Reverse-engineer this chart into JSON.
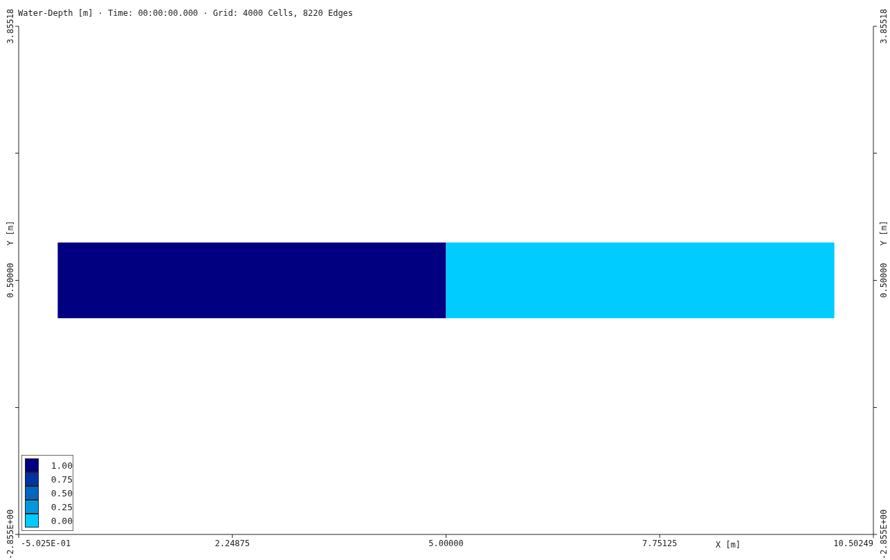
{
  "chart_data": {
    "type": "area",
    "title": "Water-Depth [m] · Time: 00:00:00.000 · Grid: 4000 Cells, 8220 Edges",
    "xlabel": "X [m]",
    "ylabel": "Y [m]",
    "y2label": "Y [m]",
    "series": [
      {
        "name": "1.00",
        "color": "#000080",
        "x": [
          0,
          5
        ],
        "values": [
          1,
          1
        ]
      },
      {
        "name": "0.75",
        "color": "#0033a0"
      },
      {
        "name": "0.50",
        "color": "#0066c0"
      },
      {
        "name": "0.25",
        "color": "#0099dd"
      },
      {
        "name": "0.00",
        "color": "#00ccff",
        "x": [
          5,
          10
        ],
        "values": [
          1,
          1
        ]
      }
    ],
    "legend": "bottom left",
    "xlim": [
      -0.5025,
      10.50249
    ],
    "xticks": [
      {
        "value": -0.5025,
        "label": "-5.025E-01"
      },
      2.24875,
      {
        "value": 5,
        "label": "5.00000"
      },
      7.75125,
      10.50249
    ],
    "ylim": [
      -2.855,
      3.85518
    ],
    "yticks": [
      {
        "value": -2.855,
        "label": "-2.855E+00"
      },
      {
        "value": -1.18,
        "label": null
      },
      {
        "value": 0.5,
        "label": "0.50000"
      },
      {
        "value": 2.18,
        "label": null
      },
      3.85518
    ],
    "y2lim": [
      -2.855,
      3.85518
    ],
    "y2ticks": [
      {
        "value": -2.855,
        "label": "-2.855E+00"
      },
      {
        "value": -1.18,
        "label": null
      },
      {
        "value": 0.5,
        "label": "0.50000"
      },
      {
        "value": 2.18,
        "label": null
      },
      3.85518
    ]
  }
}
